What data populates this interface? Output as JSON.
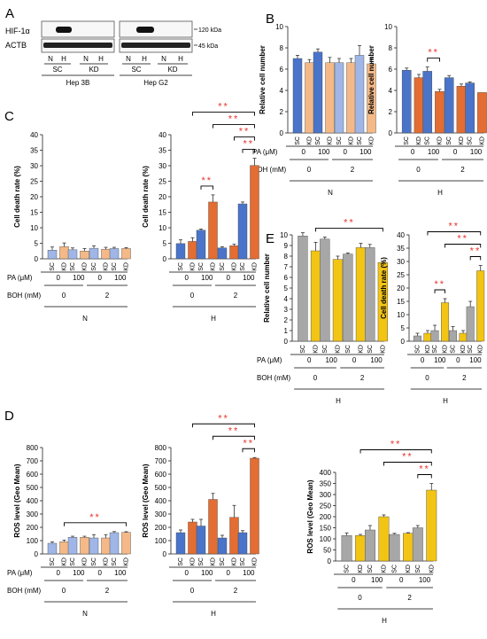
{
  "colors": {
    "blue": "#4a74c9",
    "peach": "#f4b987",
    "lightblue": "#9fb6e6",
    "orange": "#e36d32",
    "gray": "#a7a7a7",
    "yellow": "#f2c414",
    "sig": "#e8322a",
    "axis": "#222222"
  },
  "common": {
    "sc": "SC",
    "kd": "KD",
    "sig": "**",
    "pa": "PA (μM)",
    "boh": "BOH (mM)",
    "N": "N",
    "H": "H",
    "pa0": "0",
    "pa100": "100",
    "boh0": "0",
    "boh2": "2"
  },
  "panelA": {
    "letter": "A",
    "rows": [
      "HIF-1α",
      "ACTB"
    ],
    "kda": [
      "120 kDa",
      "45 kDa"
    ],
    "lane_labels": [
      "N",
      "H",
      "N",
      "H"
    ],
    "groups": [
      "SC",
      "KD"
    ],
    "cells": [
      "Hep 3B",
      "Hep G2"
    ]
  },
  "chart_data": [
    {
      "id": "B-N",
      "type": "bar",
      "panel": "B",
      "ylabel": "Relative cell number",
      "ylim": [
        0,
        10
      ],
      "yticks": [
        0,
        2,
        4,
        6,
        8,
        10
      ],
      "condition": "N",
      "categories": [
        "SC",
        "KD",
        "SC",
        "KD",
        "SC",
        "KD",
        "SC",
        "KD"
      ],
      "pa": [
        "0",
        "100",
        "0",
        "100"
      ],
      "boh": [
        "0",
        "2"
      ],
      "values": [
        7.0,
        6.6,
        7.6,
        6.6,
        6.6,
        6.6,
        7.3,
        6.5
      ],
      "errors": [
        0.3,
        0.3,
        0.3,
        0.5,
        0.4,
        0.4,
        0.9,
        0.5
      ],
      "colors": [
        "blue",
        "peach",
        "blue",
        "peach",
        "lightblue",
        "peach",
        "lightblue",
        "peach"
      ],
      "sig": []
    },
    {
      "id": "B-H",
      "type": "bar",
      "panel": "",
      "ylabel": "Relative cell number",
      "ylim": [
        0,
        10
      ],
      "yticks": [
        0,
        2,
        4,
        6,
        8,
        10
      ],
      "condition": "H",
      "categories": [
        "SC",
        "KD",
        "SC",
        "KD",
        "SC",
        "KD",
        "SC",
        "KD"
      ],
      "pa": [
        "0",
        "100",
        "0",
        "100"
      ],
      "boh": [
        "0",
        "2"
      ],
      "values": [
        5.9,
        5.2,
        5.8,
        3.9,
        5.2,
        4.4,
        4.7,
        3.8
      ],
      "errors": [
        0.2,
        0.3,
        0.4,
        0.2,
        0.2,
        0.2,
        0.1,
        0.0
      ],
      "colors": [
        "blue",
        "orange",
        "blue",
        "orange",
        "blue",
        "orange",
        "blue",
        "orange"
      ],
      "sig": [
        [
          2,
          3
        ]
      ]
    },
    {
      "id": "C-N",
      "type": "bar",
      "panel": "C",
      "ylabel": "Cell death rate  (%)",
      "ylim": [
        0,
        40
      ],
      "yticks": [
        0,
        5,
        10,
        15,
        20,
        25,
        30,
        35,
        40
      ],
      "condition": "N",
      "categories": [
        "SC",
        "KD",
        "SC",
        "KD",
        "SC",
        "KD",
        "SC",
        "KD"
      ],
      "pa": [
        "0",
        "100",
        "0",
        "100"
      ],
      "boh": [
        "0",
        "2"
      ],
      "values": [
        2.8,
        3.9,
        2.9,
        2.5,
        3.4,
        3.1,
        3.3,
        3.3
      ],
      "errors": [
        1.0,
        1.2,
        0.6,
        0.8,
        0.8,
        0.6,
        0.4,
        0.3
      ],
      "colors": [
        "lightblue",
        "peach",
        "lightblue",
        "peach",
        "lightblue",
        "peach",
        "lightblue",
        "peach"
      ],
      "sig": []
    },
    {
      "id": "C-H",
      "type": "bar",
      "panel": "",
      "ylabel": "Cell death rate  (%)",
      "ylim": [
        0,
        40
      ],
      "yticks": [
        0,
        5,
        10,
        15,
        20,
        25,
        30,
        35,
        40
      ],
      "condition": "H",
      "categories": [
        "SC",
        "KD",
        "SC",
        "KD",
        "SC",
        "KD",
        "SC",
        "KD"
      ],
      "pa": [
        "0",
        "100",
        "0",
        "100"
      ],
      "boh": [
        "0",
        "2"
      ],
      "values": [
        4.9,
        5.6,
        9.2,
        18.3,
        3.5,
        4.2,
        17.7,
        30.1
      ],
      "errors": [
        1.2,
        1.2,
        0.4,
        2.3,
        0.4,
        0.5,
        0.6,
        2.3
      ],
      "colors": [
        "blue",
        "orange",
        "blue",
        "orange",
        "blue",
        "orange",
        "blue",
        "orange"
      ],
      "sig": [
        [
          2,
          3
        ],
        [
          6,
          7
        ],
        [
          5,
          7
        ],
        [
          3,
          7
        ],
        [
          1,
          7
        ]
      ]
    },
    {
      "id": "D-N",
      "type": "bar",
      "panel": "D",
      "ylabel": "ROS level (Geo Mean)",
      "ylim": [
        0,
        800
      ],
      "yticks": [
        0,
        100,
        200,
        300,
        400,
        500,
        600,
        700,
        800
      ],
      "condition": "N",
      "categories": [
        "SC",
        "KD",
        "SC",
        "KD",
        "SC",
        "KD",
        "SC",
        "KD"
      ],
      "pa": [
        "0",
        "100",
        "0",
        "100"
      ],
      "boh": [
        "0",
        "2"
      ],
      "values": [
        80,
        92,
        125,
        125,
        120,
        120,
        160,
        162
      ],
      "errors": [
        10,
        12,
        8,
        8,
        25,
        25,
        8,
        5
      ],
      "colors": [
        "lightblue",
        "peach",
        "lightblue",
        "peach",
        "lightblue",
        "peach",
        "lightblue",
        "peach"
      ],
      "sig": [
        [
          1,
          7
        ]
      ]
    },
    {
      "id": "D-H",
      "type": "bar",
      "panel": "",
      "ylabel": "ROS level (Geo Mean)",
      "ylim": [
        0,
        800
      ],
      "yticks": [
        0,
        100,
        200,
        300,
        400,
        500,
        600,
        700,
        800
      ],
      "condition": "H",
      "categories": [
        "SC",
        "KD",
        "SC",
        "KD",
        "SC",
        "KD",
        "SC",
        "KD"
      ],
      "pa": [
        "0",
        "100",
        "0",
        "100"
      ],
      "boh": [
        "0",
        "2"
      ],
      "values": [
        160,
        240,
        210,
        410,
        120,
        275,
        160,
        720
      ],
      "errors": [
        20,
        20,
        50,
        45,
        20,
        90,
        15,
        5
      ],
      "colors": [
        "blue",
        "orange",
        "blue",
        "orange",
        "blue",
        "orange",
        "blue",
        "orange"
      ],
      "sig": [
        [
          6,
          7
        ],
        [
          3,
          7
        ],
        [
          1,
          7
        ]
      ]
    },
    {
      "id": "E-cell",
      "type": "bar",
      "panel": "E",
      "ylabel": "Relative cell number",
      "ylim": [
        0,
        10
      ],
      "yticks": [
        0,
        1,
        2,
        3,
        4,
        5,
        6,
        7,
        8,
        9,
        10
      ],
      "condition": "H",
      "categories": [
        "SC",
        "KD",
        "SC",
        "KD",
        "SC",
        "KD",
        "SC",
        "KD"
      ],
      "pa": [
        "0",
        "100",
        "0",
        "100"
      ],
      "boh": [
        "0",
        "2"
      ],
      "values": [
        9.9,
        8.5,
        9.6,
        7.7,
        8.2,
        8.8,
        8.8,
        7.4
      ],
      "errors": [
        0.3,
        0.8,
        0.2,
        0.3,
        0.1,
        0.4,
        0.3,
        0.1
      ],
      "colors": [
        "gray",
        "yellow",
        "gray",
        "yellow",
        "gray",
        "yellow",
        "gray",
        "yellow"
      ],
      "sig": [
        [
          1,
          7
        ]
      ]
    },
    {
      "id": "E-death",
      "type": "bar",
      "panel": "",
      "ylabel": "Cell death rate (%)",
      "ylim": [
        0,
        40
      ],
      "yticks": [
        0,
        5,
        10,
        15,
        20,
        25,
        30,
        35,
        40
      ],
      "condition": "H",
      "categories": [
        "SC",
        "KD",
        "SC",
        "KD",
        "SC",
        "KD",
        "SC",
        "KD"
      ],
      "pa": [
        "0",
        "100",
        "0",
        "100"
      ],
      "boh": [
        "0",
        "2"
      ],
      "values": [
        2.0,
        3.0,
        4.0,
        14.5,
        4.0,
        3.0,
        13.0,
        26.5
      ],
      "errors": [
        1.0,
        1.0,
        2.0,
        1.5,
        1.5,
        1.0,
        2.0,
        2.0
      ],
      "colors": [
        "gray",
        "yellow",
        "gray",
        "yellow",
        "gray",
        "yellow",
        "gray",
        "yellow"
      ],
      "sig": [
        [
          2,
          3
        ],
        [
          6,
          7
        ],
        [
          3,
          7
        ],
        [
          1,
          7
        ]
      ]
    },
    {
      "id": "E-ros",
      "type": "bar",
      "panel": "",
      "ylabel": "ROS level (Geo Mean)",
      "ylim": [
        0,
        400
      ],
      "yticks": [
        0,
        50,
        100,
        150,
        200,
        250,
        300,
        350,
        400
      ],
      "condition": "H",
      "categories": [
        "SC",
        "KD",
        "SC",
        "KD",
        "SC",
        "KD",
        "SC",
        "KD"
      ],
      "pa": [
        "0",
        "100",
        "0",
        "100"
      ],
      "boh": [
        "0",
        "2"
      ],
      "values": [
        115,
        115,
        140,
        200,
        120,
        125,
        150,
        320
      ],
      "errors": [
        12,
        5,
        20,
        8,
        5,
        3,
        10,
        30
      ],
      "colors": [
        "gray",
        "yellow",
        "gray",
        "yellow",
        "gray",
        "yellow",
        "gray",
        "yellow"
      ],
      "sig": [
        [
          6,
          7
        ],
        [
          3,
          7
        ],
        [
          1,
          7
        ]
      ]
    }
  ]
}
